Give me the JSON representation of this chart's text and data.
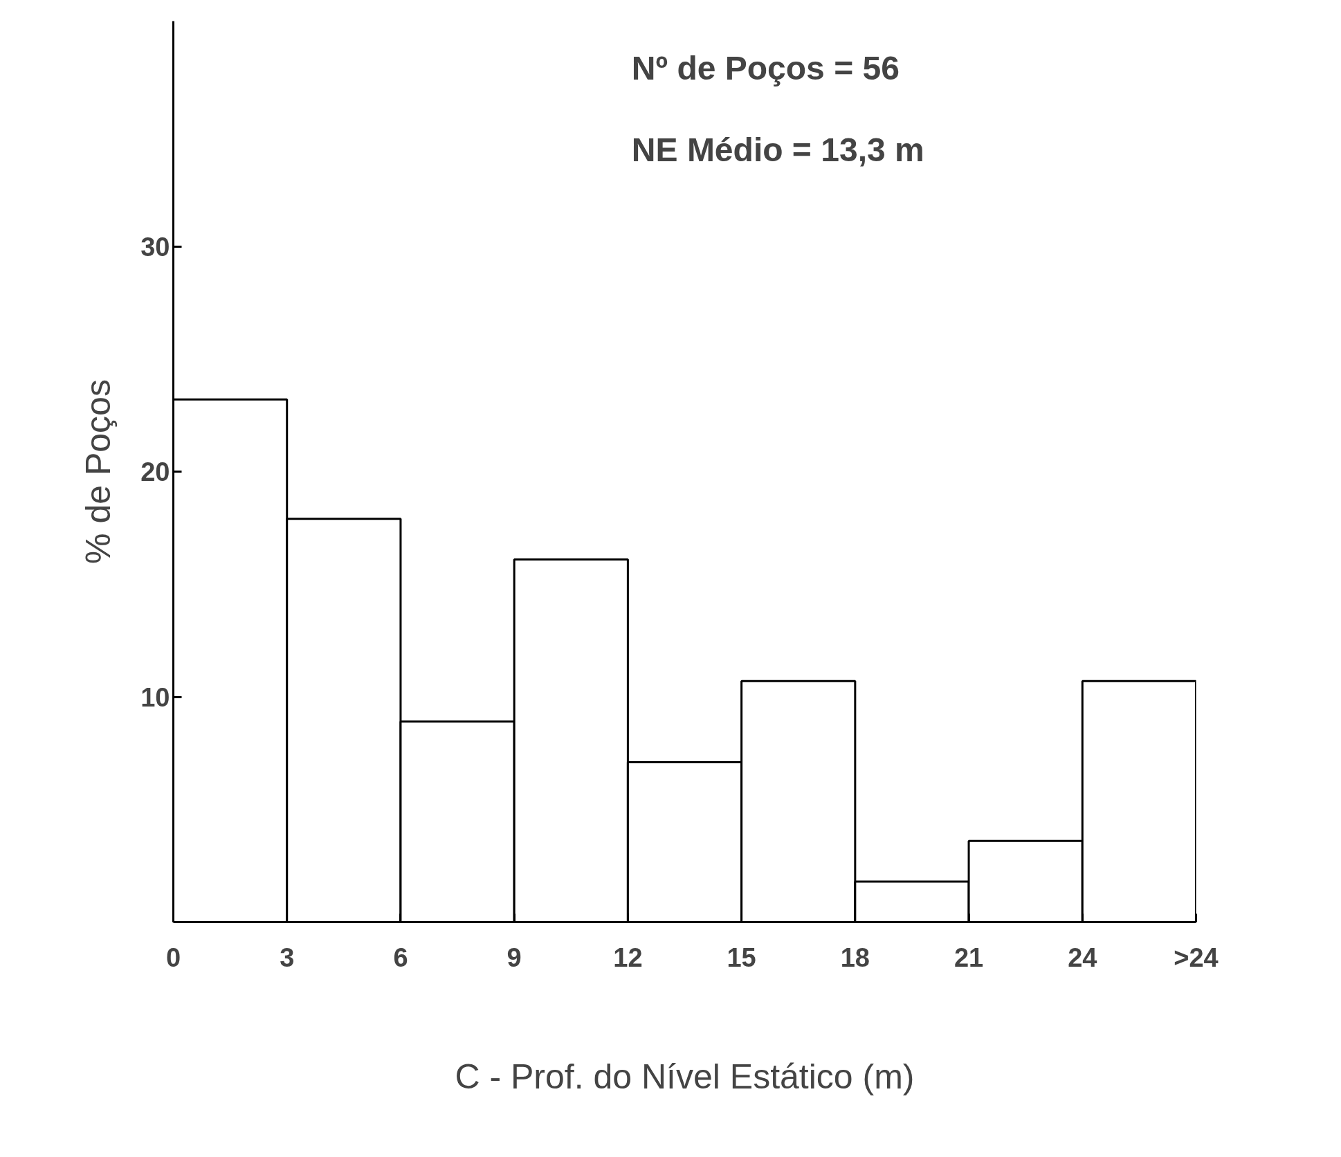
{
  "chart_data": {
    "type": "histogram",
    "xlabel": "C - Prof. do Nível Estático (m)",
    "ylabel": "% de Poços",
    "bins": [
      0,
      3,
      6,
      9,
      12,
      15,
      18,
      21,
      24,
      27
    ],
    "values": [
      23.2,
      17.9,
      8.9,
      16.1,
      7.1,
      10.7,
      1.8,
      3.6,
      10.7
    ],
    "color": "#ffffff",
    "xlim": [
      0,
      27
    ],
    "xticks": [
      0,
      3,
      6,
      9,
      12,
      15,
      18,
      21,
      24,
      {
        "value": 27,
        "label": ">24"
      }
    ],
    "ylim": [
      0,
      40
    ],
    "yticks": [
      10,
      20,
      30
    ],
    "grid": false,
    "annotations": [
      "Nº de Poços = 56",
      "NE Médio = 13,3 m"
    ]
  }
}
